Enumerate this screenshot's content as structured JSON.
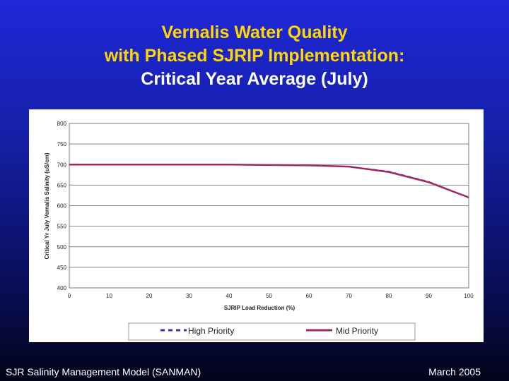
{
  "title": {
    "line1": "Vernalis Water Quality",
    "line2": "with Phased SJRIP Implementation:",
    "line3": "Critical Year Average (July)"
  },
  "footer": {
    "left": "SJR Salinity Management Model (SANMAN)",
    "right": "March 2005"
  },
  "colors": {
    "high_priority": "#3d2fb0",
    "mid_priority": "#9c2a63"
  },
  "chart_data": {
    "type": "line",
    "xlabel": "SJRIP Load Reduction (%)",
    "ylabel": "Critical Yr July Vernalis Salinity (uS/cm)",
    "xlim": [
      0,
      100
    ],
    "ylim": [
      400,
      800
    ],
    "x_ticks": [
      "0",
      "10",
      "20",
      "30",
      "40",
      "50",
      "60",
      "70",
      "80",
      "90",
      "100"
    ],
    "y_ticks": [
      "800",
      "750",
      "700",
      "650",
      "600",
      "550",
      "500",
      "450",
      "400"
    ],
    "x": [
      0,
      10,
      20,
      30,
      40,
      50,
      60,
      70,
      80,
      90,
      100
    ],
    "series": [
      {
        "name": "High Priority",
        "values": [
          700,
          700,
          700,
          700,
          700,
          699,
          698,
          695,
          683,
          658,
          620
        ]
      },
      {
        "name": "Mid Priority",
        "values": [
          700,
          700,
          700,
          700,
          700,
          699,
          698,
          695,
          682,
          657,
          620
        ]
      }
    ],
    "legend": [
      "High Priority",
      "Mid Priority"
    ]
  }
}
